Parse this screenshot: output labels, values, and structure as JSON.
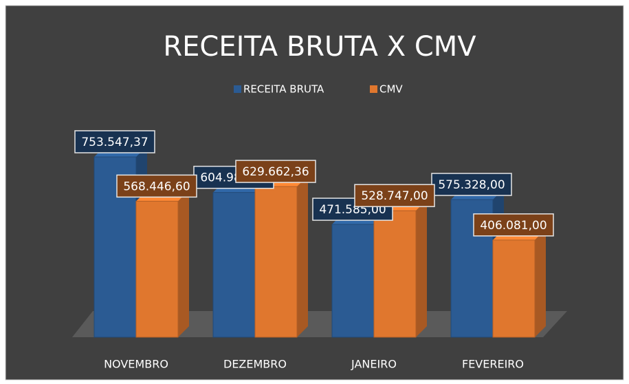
{
  "chart_data": {
    "type": "bar3d",
    "title": "RECEITA BRUTA X CMV",
    "categories": [
      "NOVEMBRO",
      "DEZEMBRO",
      "JANEIRO",
      "FEVEREIRO"
    ],
    "series": [
      {
        "name": "RECEITA BRUTA",
        "color": "#2b5b93",
        "values": [
          753547.37,
          604981.84,
          471585.0,
          575328.0
        ],
        "value_labels": [
          "753.547,37",
          "604.981,84",
          "471.585,00",
          "575.328,00"
        ]
      },
      {
        "name": "CMV",
        "color": "#e0772e",
        "values": [
          568446.6,
          629662.36,
          528747.0,
          406081.0
        ],
        "value_labels": [
          "568.446,60",
          "629.662,36",
          "528.747,00",
          "406.081,00"
        ]
      }
    ],
    "legend": "top"
  }
}
